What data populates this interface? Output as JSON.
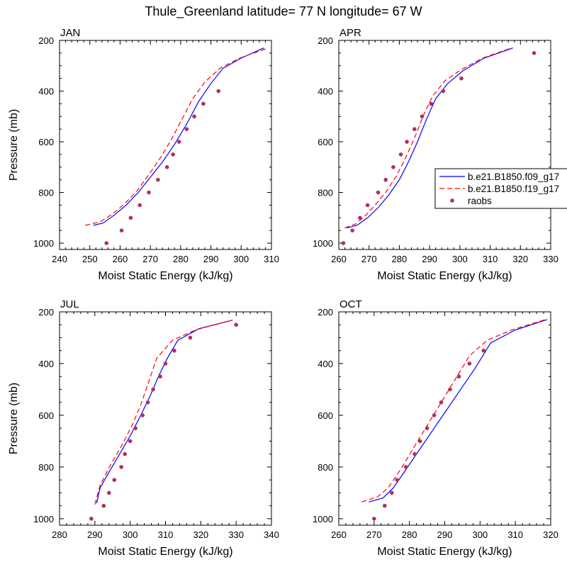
{
  "figure": {
    "title": "Thule_Greenland  latitude= 77 N longitude= 67 W"
  },
  "colors": {
    "model_f09": "#0000ff",
    "model_f19": "#ff0000",
    "raobs": "#b03060"
  },
  "chart_data": [
    {
      "type": "line",
      "panel_label": "JAN",
      "xlabel": "Moist Static Energy (kJ/kg)",
      "ylabel": "Pressure (mb)",
      "xlim": [
        240,
        310
      ],
      "ylim": [
        1025,
        200
      ],
      "y_reversed": true,
      "xticks": [
        240,
        250,
        260,
        270,
        280,
        290,
        300,
        310
      ],
      "yticks": [
        200,
        400,
        600,
        800,
        1000
      ],
      "grid": false,
      "series": [
        {
          "name": "b.e21.B1850.f09_g17",
          "style": "solid",
          "color": "#0000ff",
          "x": [
            251.2,
            254.5,
            258,
            262,
            266,
            270,
            274,
            278,
            282,
            286,
            290,
            294,
            300,
            307.5
          ],
          "y": [
            930,
            920,
            890,
            850,
            800,
            740,
            680,
            610,
            530,
            440,
            370,
            310,
            270,
            230
          ]
        },
        {
          "name": "b.e21.B1850.f19_g17",
          "style": "dashed",
          "color": "#ff0000",
          "x": [
            248.5,
            253.5,
            257.5,
            261.5,
            265.5,
            269.5,
            273.5,
            277,
            280.5,
            284,
            288,
            293,
            299.5,
            309
          ],
          "y": [
            930,
            915,
            885,
            845,
            795,
            730,
            660,
            590,
            510,
            430,
            365,
            310,
            270,
            230
          ]
        },
        {
          "name": "raobs",
          "style": "markers",
          "color": "#b03060",
          "x": [
            255.5,
            260.5,
            263.5,
            266.5,
            269.5,
            272.5,
            275.5,
            277.5,
            279.5,
            282,
            284.5,
            287.5,
            292.5
          ],
          "y": [
            1000,
            950,
            900,
            850,
            800,
            750,
            700,
            650,
            600,
            550,
            500,
            450,
            400
          ]
        }
      ]
    },
    {
      "type": "line",
      "panel_label": "APR",
      "xlabel": "Moist Static Energy (kJ/kg)",
      "ylabel": "",
      "xlim": [
        260,
        330
      ],
      "ylim": [
        1025,
        200
      ],
      "y_reversed": true,
      "xticks": [
        260,
        270,
        280,
        290,
        300,
        310,
        320,
        330
      ],
      "yticks": [
        200,
        400,
        600,
        800,
        1000
      ],
      "grid": false,
      "legend": {
        "placement": "right-middle",
        "entries": [
          "b.e21.B1850.f09_g17",
          "b.e21.B1850.f19_g17",
          "raobs"
        ]
      },
      "series": [
        {
          "name": "b.e21.B1850.f09_g17",
          "style": "solid",
          "color": "#0000ff",
          "x": [
            262.5,
            266,
            269.5,
            273,
            276.5,
            280,
            283,
            286,
            289,
            292,
            296,
            301,
            308,
            317.5
          ],
          "y": [
            940,
            930,
            900,
            860,
            810,
            750,
            680,
            600,
            510,
            430,
            370,
            320,
            270,
            230
          ]
        },
        {
          "name": "b.e21.B1850.f19_g17",
          "style": "dashed",
          "color": "#ff0000",
          "x": [
            262,
            265.5,
            268.5,
            272,
            275.5,
            279,
            282,
            285,
            288,
            291,
            295,
            300.5,
            307.5,
            317
          ],
          "y": [
            940,
            925,
            895,
            850,
            800,
            735,
            665,
            585,
            495,
            420,
            360,
            315,
            270,
            230
          ]
        },
        {
          "name": "raobs",
          "style": "markers",
          "color": "#b03060",
          "x": [
            261.5,
            264.5,
            267,
            269.5,
            273,
            275.5,
            278,
            280.5,
            282.5,
            285,
            287.5,
            290.5,
            294.5,
            300.5,
            324.5
          ],
          "y": [
            1000,
            950,
            900,
            850,
            800,
            750,
            700,
            650,
            600,
            550,
            500,
            450,
            400,
            350,
            250
          ]
        }
      ]
    },
    {
      "type": "line",
      "panel_label": "JUL",
      "xlabel": "Moist Static Energy (kJ/kg)",
      "ylabel": "Pressure (mb)",
      "xlim": [
        280,
        340
      ],
      "ylim": [
        1025,
        200
      ],
      "y_reversed": true,
      "xticks": [
        280,
        290,
        300,
        310,
        320,
        330,
        340
      ],
      "yticks": [
        200,
        400,
        600,
        800,
        1000
      ],
      "grid": false,
      "series": [
        {
          "name": "b.e21.B1850.f09_g17",
          "style": "solid",
          "color": "#0000ff",
          "x": [
            290.5,
            291.5,
            294,
            297,
            300,
            303,
            305.5,
            308,
            310.5,
            313.5,
            319.5,
            329
          ],
          "y": [
            940,
            880,
            820,
            750,
            680,
            600,
            530,
            450,
            380,
            310,
            265,
            232
          ]
        },
        {
          "name": "b.e21.B1850.f19_g17",
          "style": "dashed",
          "color": "#ff0000",
          "x": [
            290,
            291.5,
            294.5,
            297.5,
            300.5,
            303,
            305,
            307.5,
            312,
            318.5,
            329.5
          ],
          "y": [
            945,
            870,
            790,
            720,
            640,
            560,
            480,
            380,
            310,
            270,
            230
          ]
        },
        {
          "name": "raobs",
          "style": "markers",
          "color": "#b03060",
          "x": [
            289,
            292.5,
            294,
            295.5,
            297.5,
            298.5,
            300,
            301.5,
            303.5,
            305,
            306.5,
            308.5,
            310,
            312.5,
            317,
            330
          ],
          "y": [
            1000,
            950,
            900,
            850,
            800,
            750,
            700,
            650,
            600,
            550,
            500,
            450,
            400,
            350,
            300,
            250
          ]
        }
      ]
    },
    {
      "type": "line",
      "panel_label": "OCT",
      "xlabel": "Moist Static Energy (kJ/kg)",
      "ylabel": "",
      "xlim": [
        260,
        320
      ],
      "ylim": [
        1025,
        200
      ],
      "y_reversed": true,
      "xticks": [
        260,
        270,
        280,
        290,
        300,
        310,
        320
      ],
      "yticks": [
        200,
        400,
        600,
        800,
        1000
      ],
      "grid": false,
      "series": [
        {
          "name": "b.e21.B1850.f09_g17",
          "style": "solid",
          "color": "#0000ff",
          "x": [
            268.5,
            272.5,
            275.5,
            279,
            283,
            287,
            291,
            295,
            298.5,
            303,
            310,
            319
          ],
          "y": [
            935,
            920,
            880,
            810,
            730,
            650,
            570,
            490,
            420,
            320,
            270,
            230
          ]
        },
        {
          "name": "b.e21.B1850.f19_g17",
          "style": "dashed",
          "color": "#ff0000",
          "x": [
            266.5,
            271,
            274,
            277.5,
            281,
            285,
            289,
            293,
            297,
            302,
            309,
            318.5
          ],
          "y": [
            935,
            915,
            880,
            810,
            730,
            640,
            550,
            460,
            370,
            310,
            270,
            230
          ]
        },
        {
          "name": "raobs",
          "style": "markers",
          "color": "#b03060",
          "x": [
            270,
            273,
            275,
            276.5,
            279,
            281.5,
            283,
            285,
            287,
            289,
            291.5,
            294,
            297,
            301
          ],
          "y": [
            1000,
            950,
            900,
            850,
            800,
            750,
            700,
            650,
            600,
            550,
            500,
            450,
            400,
            350
          ]
        }
      ]
    }
  ]
}
